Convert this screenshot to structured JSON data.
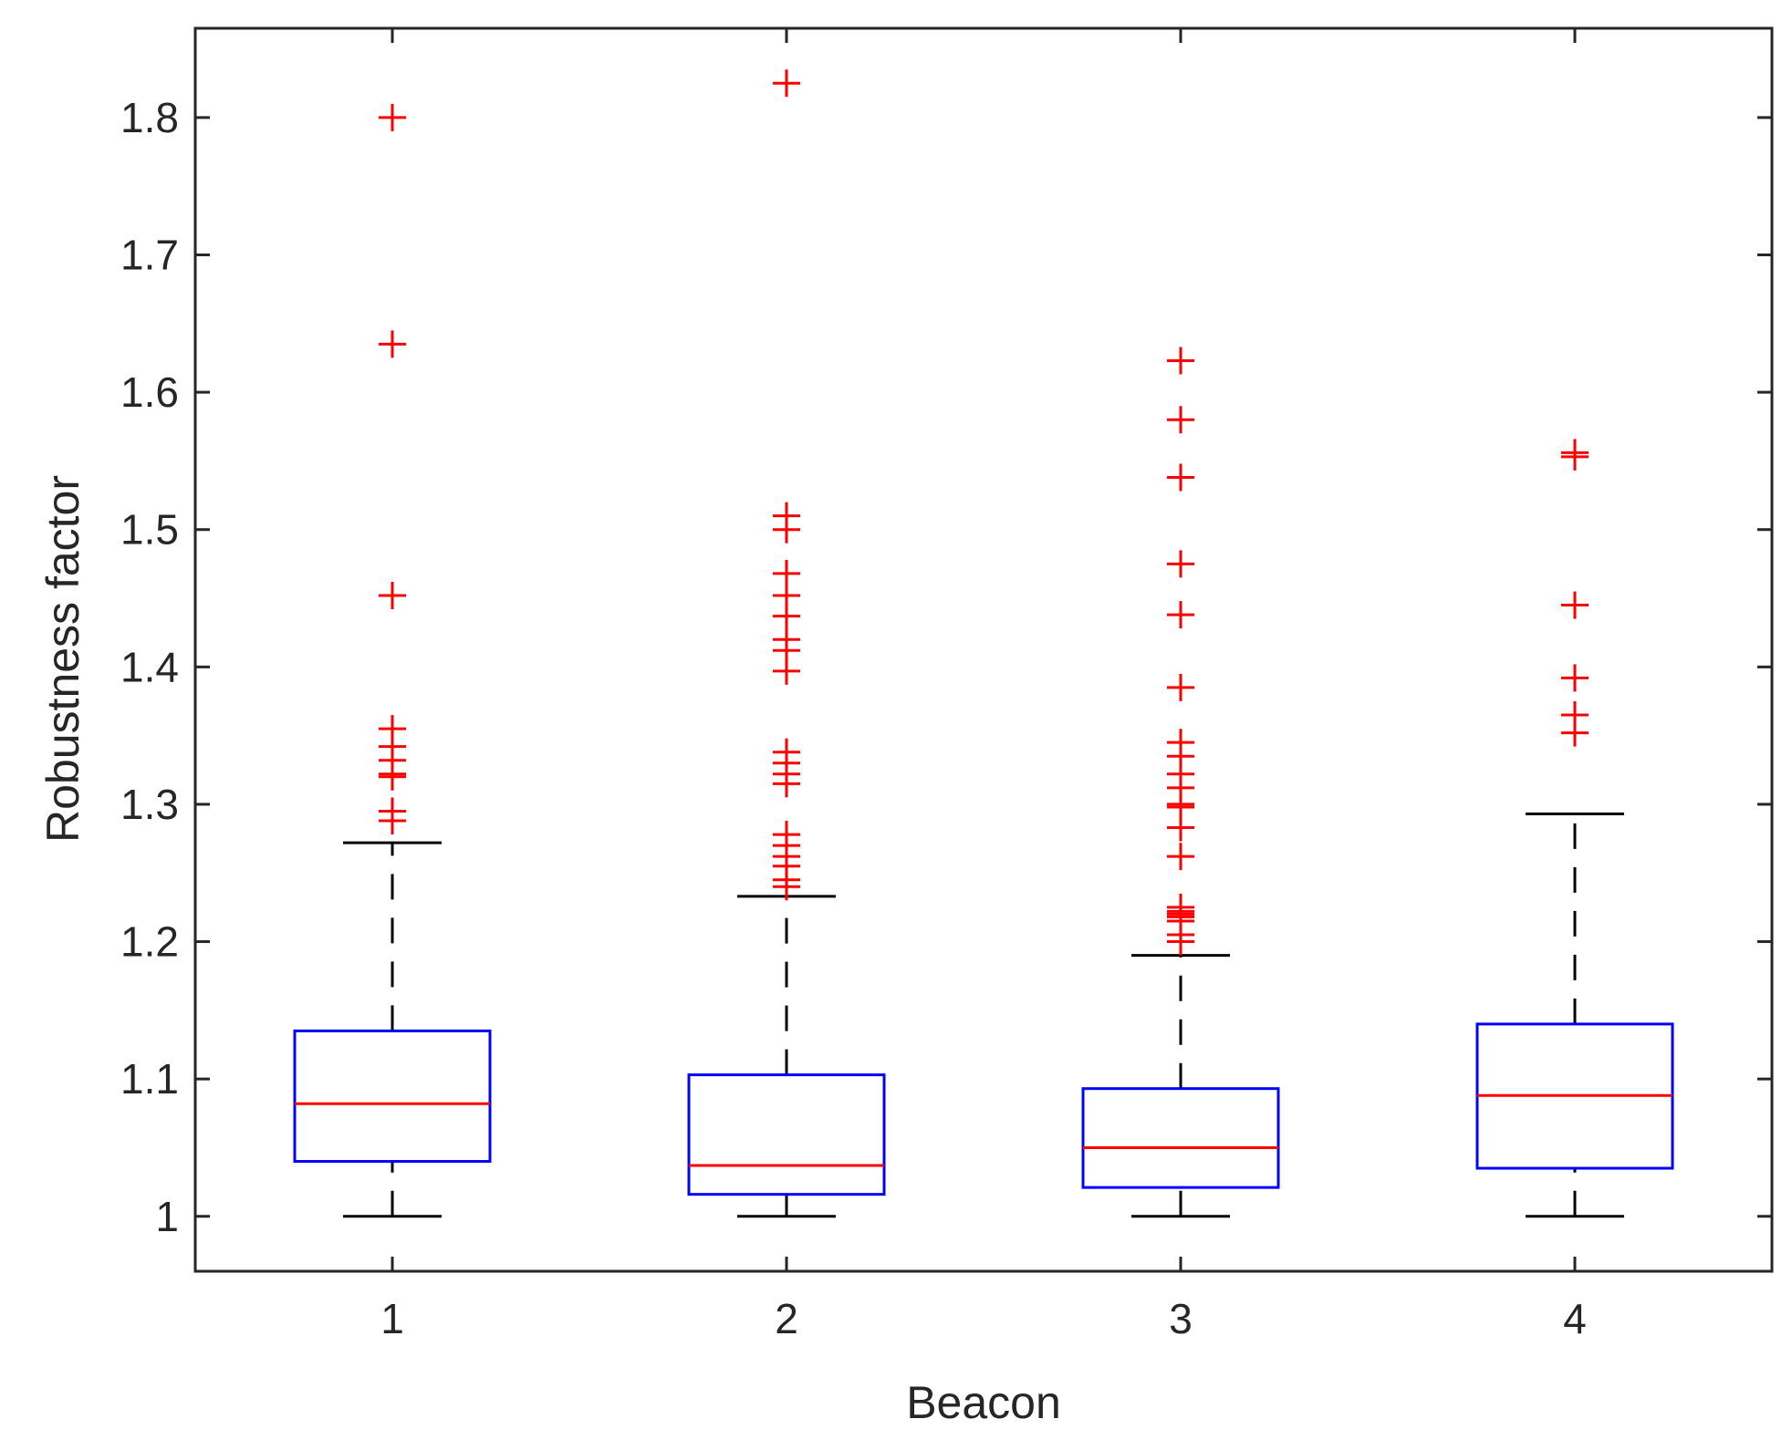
{
  "chart_data": {
    "type": "box",
    "xlabel": "Beacon",
    "ylabel": "Robustness factor",
    "categories": [
      "1",
      "2",
      "3",
      "4"
    ],
    "ylim": [
      0.96,
      1.865
    ],
    "yticks": [
      1,
      1.1,
      1.2,
      1.3,
      1.4,
      1.5,
      1.6,
      1.7,
      1.8
    ],
    "ytick_labels": [
      "1",
      "1.1",
      "1.2",
      "1.3",
      "1.4",
      "1.5",
      "1.6",
      "1.7",
      "1.8"
    ],
    "grid": false,
    "colors": {
      "box": "#0000ff",
      "median": "#ff0000",
      "whisker": "#000000",
      "outlier": "#ff0000",
      "axes": "#262626"
    },
    "boxes": [
      {
        "category": "1",
        "whisker_low": 1.0,
        "q1": 1.04,
        "median": 1.082,
        "q3": 1.135,
        "whisker_high": 1.272,
        "outliers": [
          1.8,
          1.635,
          1.452,
          1.355,
          1.342,
          1.332,
          1.322,
          1.32,
          1.295,
          1.288
        ]
      },
      {
        "category": "2",
        "whisker_low": 1.0,
        "q1": 1.016,
        "median": 1.037,
        "q3": 1.103,
        "whisker_high": 1.233,
        "outliers": [
          1.825,
          1.51,
          1.5,
          1.468,
          1.452,
          1.437,
          1.42,
          1.412,
          1.397,
          1.338,
          1.33,
          1.322,
          1.315,
          1.278,
          1.27,
          1.262,
          1.255,
          1.245,
          1.24
        ]
      },
      {
        "category": "3",
        "whisker_low": 1.0,
        "q1": 1.021,
        "median": 1.05,
        "q3": 1.093,
        "whisker_high": 1.19,
        "outliers": [
          1.623,
          1.58,
          1.538,
          1.475,
          1.438,
          1.385,
          1.345,
          1.335,
          1.322,
          1.312,
          1.3,
          1.298,
          1.283,
          1.262,
          1.225,
          1.222,
          1.22,
          1.218,
          1.215,
          1.205,
          1.2
        ]
      },
      {
        "category": "4",
        "whisker_low": 1.0,
        "q1": 1.035,
        "median": 1.088,
        "q3": 1.14,
        "whisker_high": 1.293,
        "outliers": [
          1.556,
          1.553,
          1.445,
          1.392,
          1.365,
          1.352
        ]
      }
    ]
  }
}
